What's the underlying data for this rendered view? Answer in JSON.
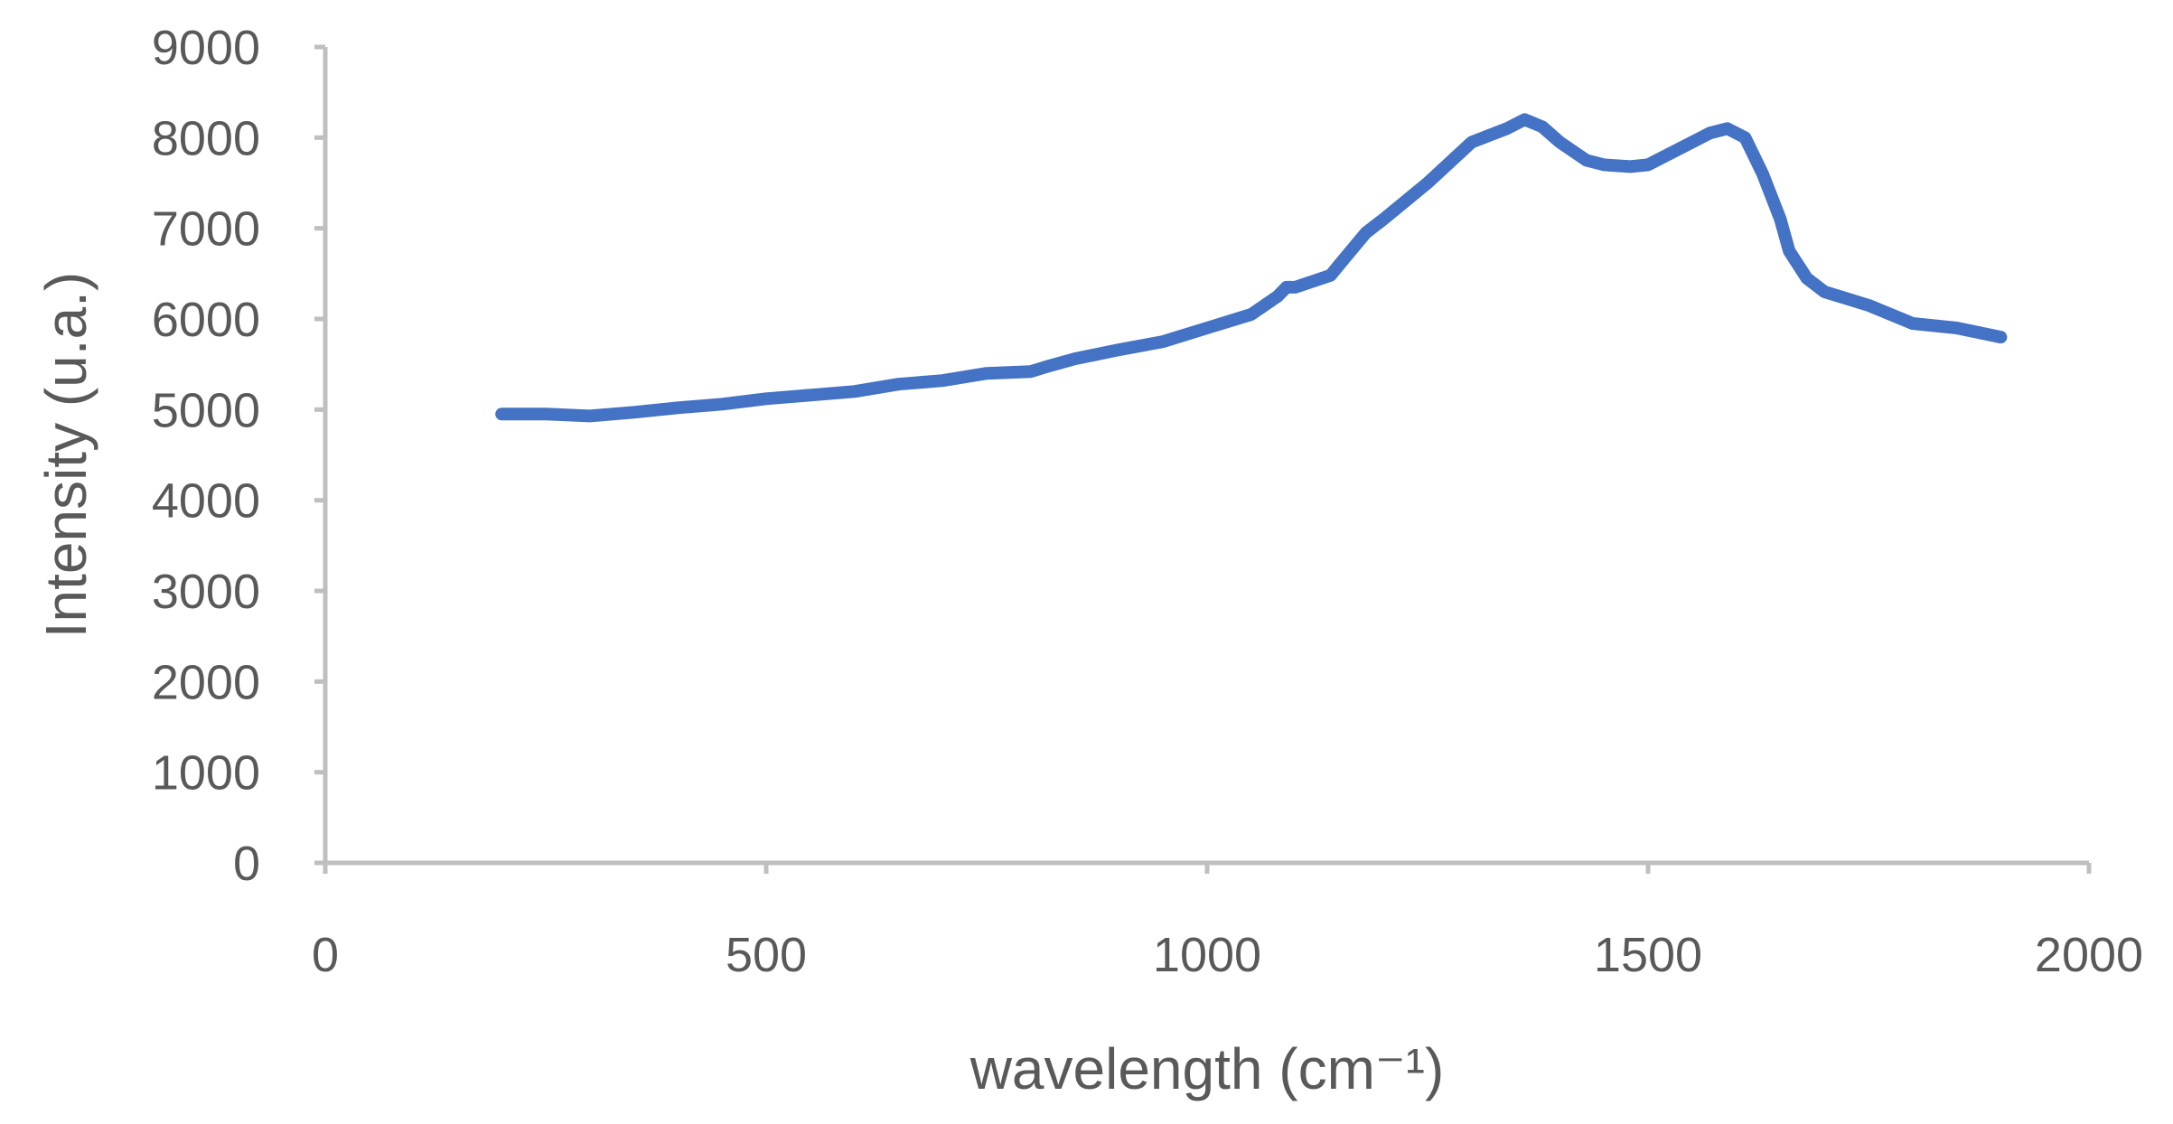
{
  "chart_data": {
    "type": "line",
    "xlabel": "wavelength (cm⁻¹)",
    "ylabel": "Intensity (u.a.)",
    "xlim": [
      0,
      2000
    ],
    "ylim": [
      0,
      9000
    ],
    "x_ticks": [
      "0",
      "500",
      "1000",
      "1500",
      "2000"
    ],
    "y_ticks": [
      "0",
      "1000",
      "2000",
      "3000",
      "4000",
      "5000",
      "6000",
      "7000",
      "8000",
      "9000"
    ],
    "grid": false,
    "legend": "none",
    "series_color": "#4472c4",
    "series": [
      {
        "x": [
          200,
          250,
          300,
          350,
          400,
          450,
          500,
          550,
          600,
          650,
          700,
          750,
          800,
          820,
          850,
          900,
          950,
          1000,
          1050,
          1080,
          1090,
          1100,
          1140,
          1150,
          1180,
          1200,
          1250,
          1300,
          1340,
          1360,
          1380,
          1400,
          1430,
          1450,
          1480,
          1500,
          1520,
          1550,
          1570,
          1590,
          1610,
          1630,
          1650,
          1660,
          1680,
          1700,
          1750,
          1800,
          1850,
          1900
        ],
        "y": [
          4950,
          4950,
          4930,
          4970,
          5020,
          5060,
          5120,
          5160,
          5200,
          5280,
          5320,
          5400,
          5420,
          5480,
          5560,
          5660,
          5750,
          5900,
          6050,
          6250,
          6350,
          6350,
          6480,
          6600,
          6950,
          7100,
          7500,
          7950,
          8100,
          8200,
          8120,
          7950,
          7750,
          7700,
          7680,
          7700,
          7800,
          7950,
          8050,
          8100,
          8000,
          7600,
          7100,
          6750,
          6450,
          6300,
          6150,
          5950,
          5900,
          5800
        ]
      }
    ]
  }
}
